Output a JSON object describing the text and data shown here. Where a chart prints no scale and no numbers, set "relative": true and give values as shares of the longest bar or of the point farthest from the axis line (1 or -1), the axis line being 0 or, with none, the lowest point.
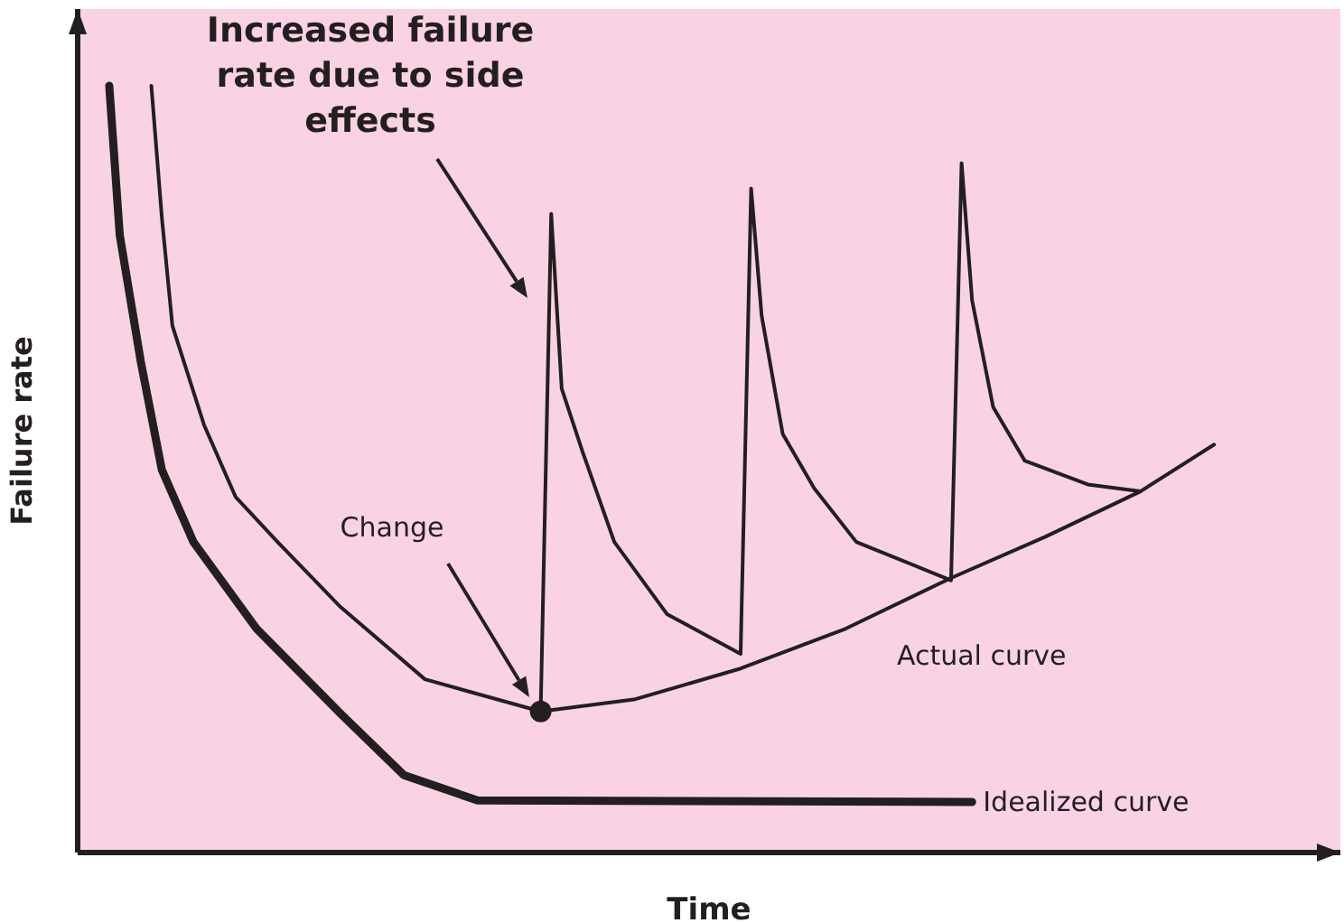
{
  "chart_data": {
    "type": "line",
    "relative": true,
    "xlabel": "Time",
    "ylabel": "Failure rate",
    "marker": "none",
    "line_style": "solid",
    "categories": [
      null,
      null,
      null,
      null,
      null,
      null,
      null,
      null,
      null,
      null,
      null,
      null,
      null,
      null,
      null,
      null,
      null,
      null,
      null,
      null,
      null,
      null,
      null,
      null,
      null,
      null,
      null,
      null,
      null,
      null,
      null,
      null,
      null,
      null,
      null,
      null,
      null,
      null,
      null,
      null,
      null,
      null,
      null,
      null,
      null,
      null,
      null,
      null,
      null,
      null,
      null,
      null,
      null,
      null,
      null,
      null,
      null,
      null,
      null,
      null,
      null,
      null,
      null,
      null,
      null,
      null,
      null,
      null,
      null,
      null,
      null,
      null,
      null,
      null,
      null,
      null,
      null,
      null,
      null,
      null,
      null,
      null,
      null,
      null,
      null,
      null,
      null,
      null,
      null,
      null,
      null,
      null,
      null,
      null,
      null,
      null,
      null,
      null,
      null,
      null,
      null,
      null,
      null,
      null,
      null,
      null,
      null,
      null,
      null,
      null,
      null,
      null,
      null,
      null,
      null,
      null,
      null,
      null,
      null,
      null
    ],
    "series": [
      {
        "name": "Idealized curve",
        "color": "#231f20",
        "values": [
          null,
          null,
          null,
          1.0,
          0.805,
          null,
          0.64,
          null,
          0.499,
          null,
          null,
          0.405,
          null,
          null,
          null,
          null,
          null,
          0.292,
          null,
          null,
          null,
          null,
          null,
          null,
          null,
          0.181,
          null,
          null,
          null,
          null,
          null,
          0.101,
          null,
          null,
          null,
          null,
          null,
          null,
          0.068,
          null,
          null,
          null,
          null,
          null,
          null,
          null,
          null,
          null,
          null,
          null,
          null,
          null,
          null,
          null,
          null,
          null,
          null,
          null,
          null,
          null,
          null,
          null,
          null,
          null,
          null,
          null,
          null,
          null,
          null,
          null,
          null,
          null,
          null,
          null,
          null,
          null,
          null,
          null,
          null,
          null,
          null,
          null,
          null,
          null,
          null,
          0.066,
          null,
          null,
          null,
          null,
          null,
          null,
          null,
          null,
          null,
          null,
          null,
          null,
          null,
          null,
          null,
          null,
          null,
          null,
          null,
          null,
          null,
          null,
          null,
          null,
          null,
          null,
          null,
          null,
          null,
          null,
          null,
          null,
          null,
          null
        ]
      },
      {
        "name": "Actual curve",
        "color": "#231f20",
        "values": [
          null,
          null,
          null,
          null,
          null,
          null,
          null,
          1.0,
          0.828,
          0.687,
          null,
          null,
          0.558,
          null,
          null,
          0.464,
          null,
          null,
          null,
          0.405,
          null,
          null,
          null,
          null,
          null,
          0.32,
          null,
          null,
          null,
          null,
          null,
          null,
          null,
          0.226,
          null,
          null,
          null,
          null,
          null,
          null,
          null,
          null,
          null,
          null,
          0.184,
          null,
          null,
          null,
          null,
          null,
          null,
          null,
          null,
          0.2,
          null,
          null,
          null,
          null,
          null,
          null,
          null,
          null,
          null,
          0.24,
          null,
          null,
          null,
          null,
          null,
          null,
          null,
          null,
          null,
          0.292,
          null,
          null,
          null,
          null,
          null,
          null,
          null,
          null,
          null,
          0.358,
          null,
          null,
          null,
          null,
          null,
          null,
          null,
          null,
          0.412,
          null,
          null,
          null,
          null,
          null,
          null,
          null,
          null,
          0.471,
          null,
          null,
          null,
          null,
          null,
          null,
          0.532,
          null,
          null,
          null,
          null,
          null,
          null,
          null,
          null,
          null,
          null,
          null
        ]
      },
      {
        "color": "#231f20",
        "values": [
          null,
          null,
          null,
          null,
          null,
          null,
          null,
          null,
          null,
          null,
          null,
          null,
          null,
          null,
          null,
          null,
          null,
          null,
          null,
          null,
          null,
          null,
          null,
          null,
          null,
          null,
          null,
          null,
          null,
          null,
          null,
          null,
          null,
          null,
          null,
          null,
          null,
          null,
          null,
          null,
          null,
          null,
          null,
          null,
          0.184,
          0.833,
          0.605,
          null,
          0.522,
          null,
          null,
          0.405,
          null,
          null,
          null,
          null,
          0.311,
          null,
          null,
          null,
          null,
          null,
          null,
          0.259,
          0.866,
          0.7,
          null,
          0.546,
          null,
          null,
          0.475,
          null,
          null,
          null,
          0.405,
          null,
          null,
          null,
          null,
          null,
          null,
          null,
          null,
          0.355,
          0.899,
          0.72,
          null,
          0.581,
          null,
          null,
          0.511,
          null,
          null,
          null,
          null,
          null,
          0.48,
          null,
          null,
          null,
          null,
          0.471,
          null,
          null,
          null,
          null,
          null,
          null,
          null,
          null,
          null,
          null,
          null,
          null,
          null,
          null,
          null,
          null,
          null,
          null
        ]
      }
    ],
    "annotations": [
      "Increased failure rate due to side effects",
      "Change"
    ]
  }
}
